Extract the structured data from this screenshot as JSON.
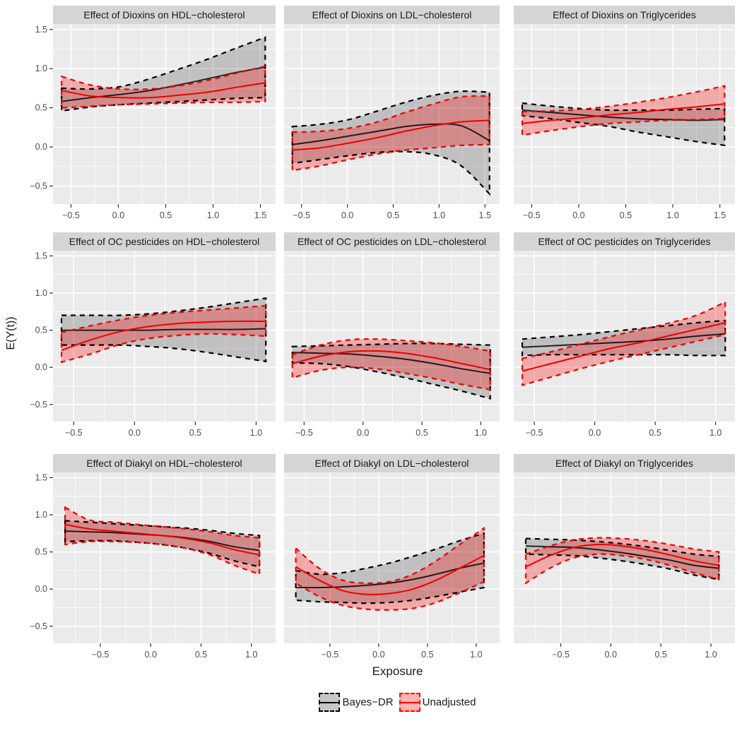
{
  "figure": {
    "x_axis_title": "Exposure",
    "y_axis_title": "E(Y(t))"
  },
  "colors": {
    "panel_bg": "#EBEBEB",
    "strip_bg": "#D5D5D5",
    "grid": "#FFFFFF",
    "tick_text": "#4D4D4D",
    "tick_mark": "#333333",
    "bayes_line": "#000000",
    "bayes_fill": "rgba(0,0,0,0.18)",
    "unadjusted_line": "#EE0000",
    "unadjusted_fill": "rgba(255,0,0,0.28)"
  },
  "legend": {
    "items": [
      {
        "label": "Bayes−DR",
        "line": "#000000",
        "fill": "rgba(0,0,0,0.22)"
      },
      {
        "label": "Unadjusted",
        "line": "#FF0000",
        "fill": "rgba(255,0,0,0.30)"
      }
    ]
  },
  "axes": {
    "y_domain": [
      -0.73,
      1.57
    ],
    "y_ticks": [
      -0.5,
      0.0,
      0.5,
      1.0,
      1.5
    ],
    "y_minor": [
      -0.25,
      0.25,
      0.75,
      1.25
    ],
    "rows": [
      {
        "x_domain": [
          -0.69,
          1.66
        ],
        "x_ticks": [
          -0.5,
          0.0,
          0.5,
          1.0,
          1.5
        ],
        "x_minor": [
          -0.25,
          0.25,
          0.75,
          1.25
        ]
      },
      {
        "x_domain": [
          -0.67,
          1.16
        ],
        "x_ticks": [
          -0.5,
          0.0,
          0.5,
          1.0
        ],
        "x_minor": [
          -0.25,
          0.25,
          0.75
        ]
      },
      {
        "x_domain": [
          -0.97,
          1.24
        ],
        "x_ticks": [
          -0.5,
          0.0,
          0.5,
          1.0
        ],
        "x_minor": [
          -0.75,
          -0.25,
          0.25,
          0.75
        ]
      }
    ]
  },
  "chart_data": [
    {
      "type": "line",
      "title": "Effect of Dioxins on HDL−cholesterol",
      "row": 0,
      "col": 0,
      "x": [
        -0.6,
        -0.29,
        0.02,
        0.33,
        0.63,
        0.94,
        1.24,
        1.55
      ],
      "series": [
        {
          "name": "Bayes−DR",
          "mean": [
            0.58,
            0.63,
            0.67,
            0.72,
            0.79,
            0.87,
            0.95,
            1.02
          ],
          "lower": [
            0.46,
            0.51,
            0.54,
            0.56,
            0.58,
            0.6,
            0.62,
            0.63
          ],
          "upper": [
            0.75,
            0.74,
            0.77,
            0.87,
            0.99,
            1.12,
            1.26,
            1.4
          ]
        },
        {
          "name": "Unadjusted",
          "mean": [
            0.72,
            0.65,
            0.63,
            0.63,
            0.66,
            0.7,
            0.76,
            0.82
          ],
          "lower": [
            0.5,
            0.52,
            0.54,
            0.55,
            0.56,
            0.57,
            0.57,
            0.58
          ],
          "upper": [
            0.9,
            0.79,
            0.74,
            0.74,
            0.78,
            0.85,
            0.94,
            1.03
          ]
        }
      ]
    },
    {
      "type": "line",
      "title": "Effect of Dioxins on LDL−cholesterol",
      "row": 0,
      "col": 1,
      "x": [
        -0.6,
        -0.29,
        0.02,
        0.33,
        0.63,
        0.94,
        1.24,
        1.55
      ],
      "series": [
        {
          "name": "Bayes−DR",
          "mean": [
            0.03,
            0.08,
            0.14,
            0.2,
            0.26,
            0.29,
            0.27,
            0.08
          ],
          "lower": [
            -0.21,
            -0.16,
            -0.11,
            -0.07,
            -0.06,
            -0.1,
            -0.24,
            -0.6
          ],
          "upper": [
            0.26,
            0.29,
            0.35,
            0.46,
            0.57,
            0.66,
            0.71,
            0.7
          ]
        },
        {
          "name": "Unadjusted",
          "mean": [
            -0.04,
            -0.01,
            0.05,
            0.12,
            0.2,
            0.27,
            0.32,
            0.34
          ],
          "lower": [
            -0.3,
            -0.24,
            -0.16,
            -0.09,
            -0.04,
            -0.01,
            0.02,
            0.03
          ],
          "upper": [
            0.19,
            0.2,
            0.24,
            0.32,
            0.44,
            0.55,
            0.64,
            0.65
          ]
        }
      ]
    },
    {
      "type": "line",
      "title": "Effect of Dioxins on Triglycerides",
      "row": 0,
      "col": 2,
      "x": [
        -0.6,
        -0.29,
        0.02,
        0.33,
        0.63,
        0.94,
        1.24,
        1.55
      ],
      "series": [
        {
          "name": "Bayes−DR",
          "mean": [
            0.47,
            0.44,
            0.41,
            0.38,
            0.36,
            0.35,
            0.34,
            0.35
          ],
          "lower": [
            0.4,
            0.36,
            0.31,
            0.26,
            0.19,
            0.13,
            0.07,
            0.02
          ],
          "upper": [
            0.56,
            0.52,
            0.49,
            0.47,
            0.47,
            0.47,
            0.48,
            0.49
          ]
        },
        {
          "name": "Unadjusted",
          "mean": [
            0.3,
            0.34,
            0.37,
            0.41,
            0.44,
            0.48,
            0.51,
            0.55
          ],
          "lower": [
            0.15,
            0.21,
            0.26,
            0.3,
            0.32,
            0.34,
            0.35,
            0.36
          ],
          "upper": [
            0.45,
            0.46,
            0.48,
            0.52,
            0.57,
            0.63,
            0.7,
            0.78
          ]
        }
      ]
    },
    {
      "type": "line",
      "title": "Effect of OC pesticides on HDL−cholesterol",
      "row": 1,
      "col": 0,
      "x": [
        -0.6,
        -0.36,
        -0.12,
        0.12,
        0.36,
        0.6,
        0.84,
        1.08
      ],
      "series": [
        {
          "name": "Bayes−DR",
          "mean": [
            0.5,
            0.5,
            0.5,
            0.5,
            0.51,
            0.51,
            0.51,
            0.52
          ],
          "lower": [
            0.3,
            0.3,
            0.3,
            0.28,
            0.25,
            0.2,
            0.14,
            0.08
          ],
          "upper": [
            0.7,
            0.7,
            0.7,
            0.72,
            0.76,
            0.81,
            0.87,
            0.93
          ]
        },
        {
          "name": "Unadjusted",
          "mean": [
            0.23,
            0.37,
            0.48,
            0.55,
            0.59,
            0.61,
            0.62,
            0.62
          ],
          "lower": [
            0.07,
            0.18,
            0.31,
            0.39,
            0.43,
            0.45,
            0.44,
            0.42
          ],
          "upper": [
            0.47,
            0.56,
            0.64,
            0.7,
            0.74,
            0.77,
            0.8,
            0.83
          ]
        }
      ]
    },
    {
      "type": "line",
      "title": "Effect of OC pesticides on LDL−cholesterol",
      "row": 1,
      "col": 1,
      "x": [
        -0.6,
        -0.36,
        -0.12,
        0.12,
        0.36,
        0.6,
        0.84,
        1.08
      ],
      "series": [
        {
          "name": "Bayes−DR",
          "mean": [
            0.2,
            0.19,
            0.18,
            0.15,
            0.11,
            0.05,
            -0.02,
            -0.08
          ],
          "lower": [
            0.06,
            0.05,
            0.01,
            -0.06,
            -0.14,
            -0.23,
            -0.32,
            -0.42
          ],
          "upper": [
            0.28,
            0.29,
            0.3,
            0.31,
            0.32,
            0.32,
            0.31,
            0.3
          ]
        },
        {
          "name": "Unadjusted",
          "mean": [
            0.05,
            0.15,
            0.21,
            0.22,
            0.19,
            0.13,
            0.05,
            -0.03
          ],
          "lower": [
            -0.14,
            -0.04,
            0.0,
            -0.02,
            -0.08,
            -0.15,
            -0.23,
            -0.3
          ],
          "upper": [
            0.17,
            0.3,
            0.37,
            0.38,
            0.36,
            0.33,
            0.28,
            0.22
          ]
        }
      ]
    },
    {
      "type": "line",
      "title": "Effect of OC pesticides on Triglycerides",
      "row": 1,
      "col": 2,
      "x": [
        -0.6,
        -0.36,
        -0.12,
        0.12,
        0.36,
        0.6,
        0.84,
        1.08
      ],
      "series": [
        {
          "name": "Bayes−DR",
          "mean": [
            0.27,
            0.29,
            0.31,
            0.33,
            0.35,
            0.38,
            0.42,
            0.45
          ],
          "lower": [
            0.16,
            0.17,
            0.17,
            0.17,
            0.17,
            0.17,
            0.16,
            0.16
          ],
          "upper": [
            0.38,
            0.41,
            0.44,
            0.48,
            0.52,
            0.56,
            0.6,
            0.63
          ]
        },
        {
          "name": "Unadjusted",
          "mean": [
            -0.05,
            0.05,
            0.15,
            0.25,
            0.33,
            0.42,
            0.51,
            0.6
          ],
          "lower": [
            -0.24,
            -0.13,
            -0.02,
            0.08,
            0.17,
            0.26,
            0.35,
            0.44
          ],
          "upper": [
            0.12,
            0.21,
            0.31,
            0.41,
            0.5,
            0.59,
            0.7,
            0.88
          ]
        }
      ]
    },
    {
      "type": "line",
      "title": "Effect of Diakyl on HDL−cholesterol",
      "row": 2,
      "col": 0,
      "x": [
        -0.85,
        -0.61,
        -0.37,
        -0.13,
        0.11,
        0.35,
        0.59,
        0.83,
        1.08
      ],
      "series": [
        {
          "name": "Bayes−DR",
          "mean": [
            0.78,
            0.77,
            0.76,
            0.74,
            0.72,
            0.69,
            0.64,
            0.57,
            0.52
          ],
          "lower": [
            0.64,
            0.65,
            0.65,
            0.63,
            0.6,
            0.55,
            0.48,
            0.38,
            0.3
          ],
          "upper": [
            0.92,
            0.9,
            0.88,
            0.86,
            0.84,
            0.82,
            0.79,
            0.75,
            0.72
          ]
        },
        {
          "name": "Unadjusted",
          "mean": [
            0.87,
            0.81,
            0.78,
            0.75,
            0.72,
            0.68,
            0.62,
            0.53,
            0.46
          ],
          "lower": [
            0.6,
            0.64,
            0.64,
            0.63,
            0.6,
            0.55,
            0.46,
            0.32,
            0.2
          ],
          "upper": [
            1.1,
            0.93,
            0.9,
            0.87,
            0.84,
            0.81,
            0.77,
            0.72,
            0.69
          ]
        }
      ]
    },
    {
      "type": "line",
      "title": "Effect of Diakyl on LDL−cholesterol",
      "row": 2,
      "col": 1,
      "x": [
        -0.85,
        -0.61,
        -0.37,
        -0.13,
        0.11,
        0.35,
        0.59,
        0.83,
        1.08
      ],
      "series": [
        {
          "name": "Bayes−DR",
          "mean": [
            0.02,
            0.02,
            0.03,
            0.05,
            0.08,
            0.13,
            0.2,
            0.28,
            0.35
          ],
          "lower": [
            -0.15,
            -0.17,
            -0.18,
            -0.19,
            -0.18,
            -0.15,
            -0.1,
            -0.04,
            0.02
          ],
          "upper": [
            0.25,
            0.2,
            0.22,
            0.28,
            0.35,
            0.44,
            0.54,
            0.65,
            0.75
          ]
        },
        {
          "name": "Unadjusted",
          "mean": [
            0.3,
            0.12,
            -0.02,
            -0.07,
            -0.06,
            0.0,
            0.12,
            0.28,
            0.45
          ],
          "lower": [
            0.08,
            -0.1,
            -0.22,
            -0.27,
            -0.28,
            -0.26,
            -0.18,
            -0.05,
            0.1
          ],
          "upper": [
            0.55,
            0.28,
            0.12,
            0.08,
            0.1,
            0.2,
            0.38,
            0.6,
            0.82
          ]
        }
      ]
    },
    {
      "type": "line",
      "title": "Effect of Diakyl on Triglycerides",
      "row": 2,
      "col": 2,
      "x": [
        -0.85,
        -0.61,
        -0.37,
        -0.13,
        0.11,
        0.35,
        0.59,
        0.83,
        1.08
      ],
      "series": [
        {
          "name": "Bayes−DR",
          "mean": [
            0.58,
            0.57,
            0.56,
            0.53,
            0.49,
            0.44,
            0.39,
            0.32,
            0.28
          ],
          "lower": [
            0.47,
            0.46,
            0.45,
            0.42,
            0.38,
            0.33,
            0.27,
            0.19,
            0.13
          ],
          "upper": [
            0.68,
            0.67,
            0.66,
            0.64,
            0.61,
            0.57,
            0.52,
            0.47,
            0.44
          ]
        },
        {
          "name": "Unadjusted",
          "mean": [
            0.3,
            0.45,
            0.56,
            0.6,
            0.58,
            0.53,
            0.46,
            0.38,
            0.32
          ],
          "lower": [
            0.08,
            0.28,
            0.42,
            0.47,
            0.45,
            0.4,
            0.32,
            0.22,
            0.13
          ],
          "upper": [
            0.47,
            0.58,
            0.66,
            0.69,
            0.68,
            0.65,
            0.6,
            0.54,
            0.5
          ]
        }
      ]
    }
  ]
}
